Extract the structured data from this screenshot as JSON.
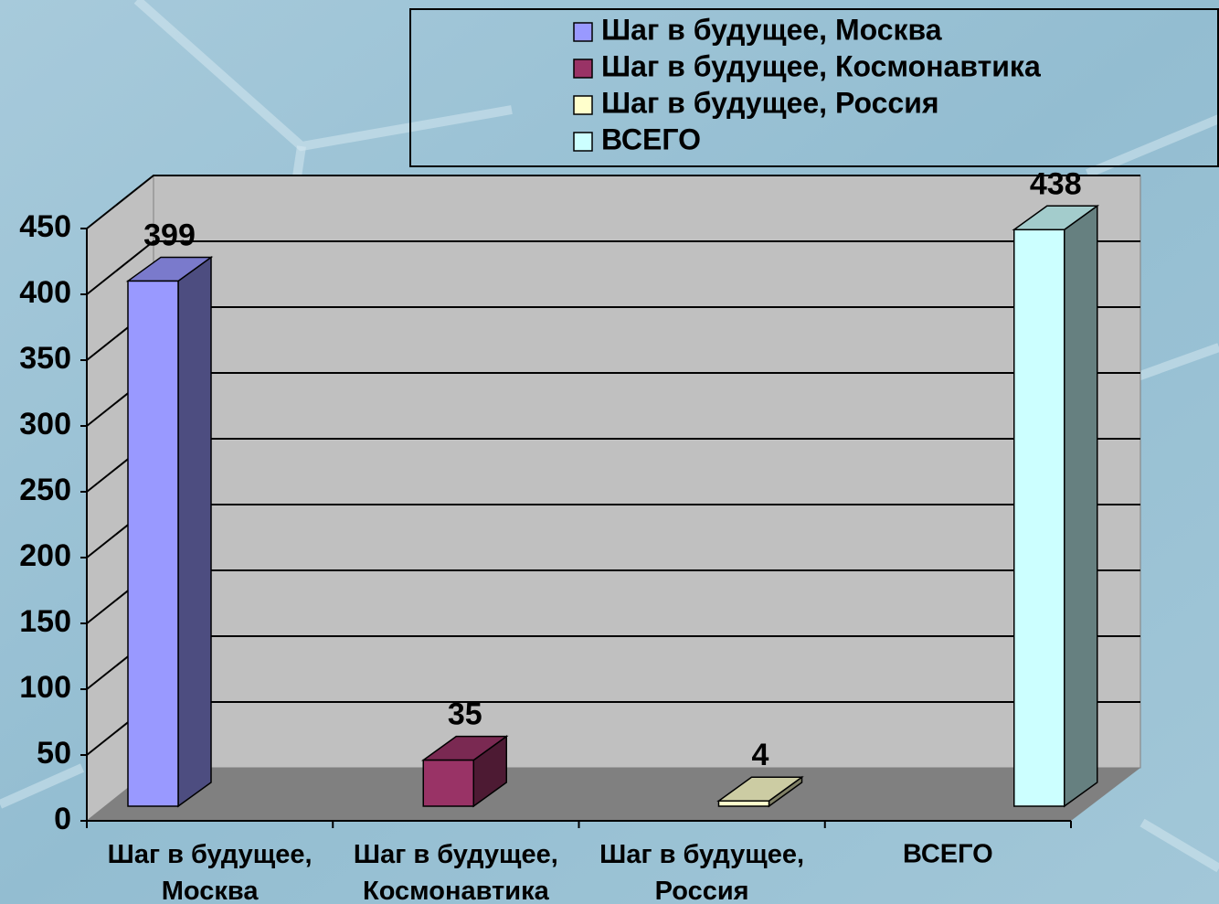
{
  "chart_data": {
    "type": "bar3d",
    "categories": [
      "Шаг в будущее, Москва",
      "Шаг в будущее, Космонавтика",
      "Шаг в будущее, Россия",
      "ВСЕГО"
    ],
    "values": [
      399,
      35,
      4,
      438
    ],
    "colors": [
      "#9999ff",
      "#993366",
      "#ffffcc",
      "#ccffff"
    ],
    "ylim": [
      0,
      450
    ],
    "yticks": [
      0,
      50,
      100,
      150,
      200,
      250,
      300,
      350,
      400,
      450
    ],
    "grid": true,
    "legend": "top-right"
  }
}
